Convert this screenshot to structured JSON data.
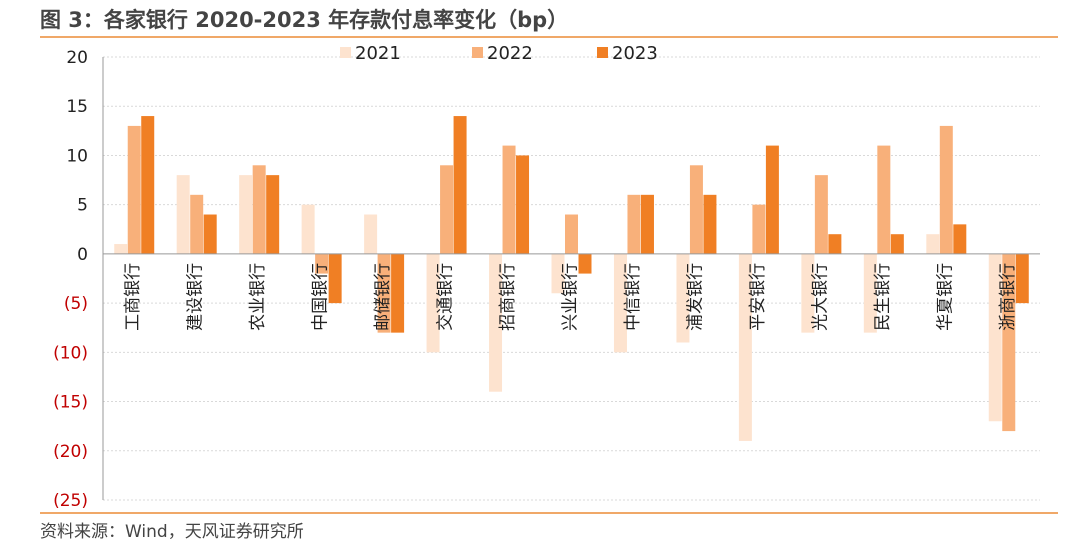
{
  "header": {
    "title": "图 3：各家银行 2020-2023 年存款付息率变化（bp）"
  },
  "footer": {
    "source": "资料来源：Wind，天风证券研究所"
  },
  "colors": {
    "2021": "#fde3cf",
    "2022": "#f8b07a",
    "2023": "#f07f24",
    "negative_tick": "#c00000",
    "positive_tick": "#222222",
    "axis": "#999999",
    "grid": "#d9d9d9"
  },
  "chart_data": {
    "type": "bar",
    "title": "各家银行 2020-2023 年存款付息率变化（bp）",
    "xlabel": "",
    "ylabel": "",
    "ylim": [
      -25,
      20
    ],
    "ytick_values": [
      20,
      15,
      10,
      5,
      0,
      -5,
      -10,
      -15,
      -20,
      -25
    ],
    "ytick_labels": [
      "20",
      "15",
      "10",
      "5",
      "0",
      "(5)",
      "(10)",
      "(15)",
      "(20)",
      "(25)"
    ],
    "grid": true,
    "legend_position": "top-center",
    "categories": [
      "工商银行",
      "建设银行",
      "农业银行",
      "中国银行",
      "邮储银行",
      "交通银行",
      "招商银行",
      "兴业银行",
      "中信银行",
      "浦发银行",
      "平安银行",
      "光大银行",
      "民生银行",
      "华夏银行",
      "浙商银行"
    ],
    "series": [
      {
        "name": "2021",
        "values": [
          1,
          8,
          8,
          5,
          4,
          -10,
          -14,
          -4,
          -10,
          -9,
          -19,
          -8,
          -8,
          2,
          -17
        ]
      },
      {
        "name": "2022",
        "values": [
          13,
          6,
          9,
          -2,
          -8,
          9,
          11,
          4,
          6,
          9,
          5,
          8,
          11,
          13,
          -18
        ]
      },
      {
        "name": "2023",
        "values": [
          14,
          4,
          8,
          -5,
          -8,
          14,
          10,
          -2,
          6,
          6,
          11,
          2,
          2,
          3,
          -5
        ]
      }
    ]
  }
}
